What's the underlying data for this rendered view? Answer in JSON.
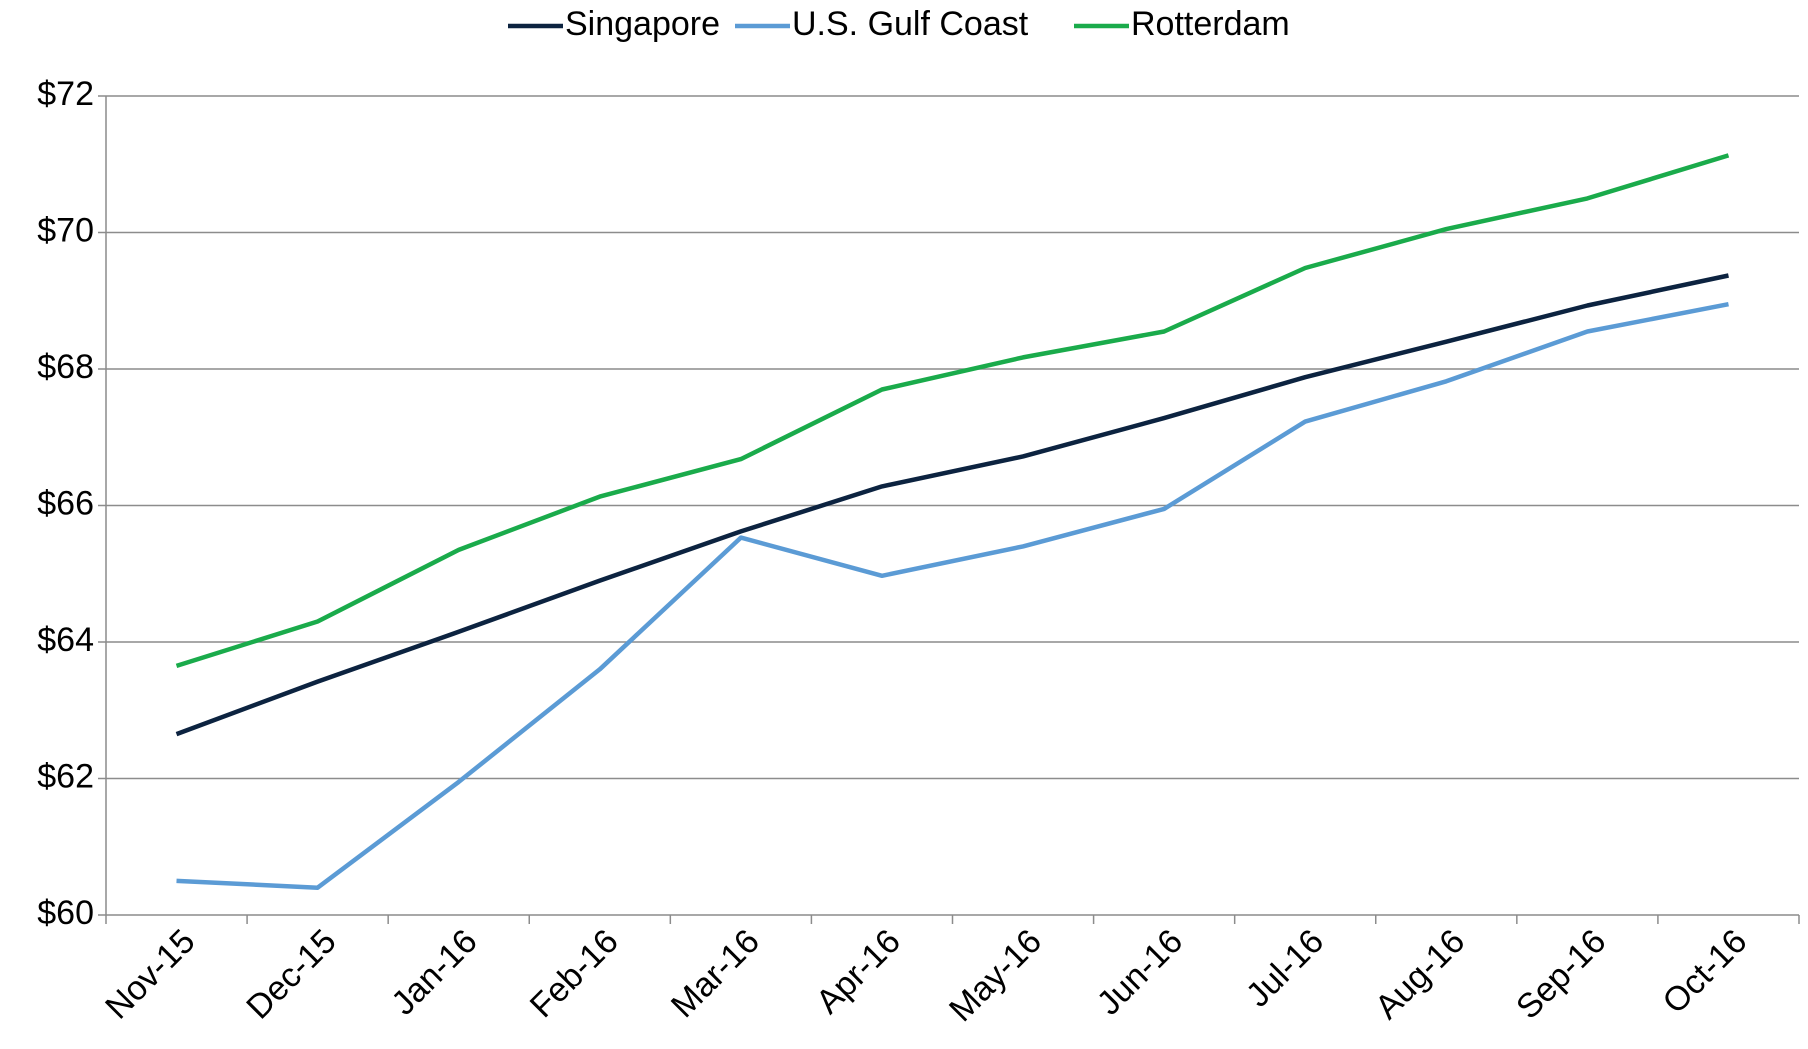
{
  "chart_data": {
    "type": "line",
    "categories": [
      "Nov-15",
      "Dec-15",
      "Jan-16",
      "Feb-16",
      "Mar-16",
      "Apr-16",
      "May-16",
      "Jun-16",
      "Jul-16",
      "Aug-16",
      "Sep-16",
      "Oct-16"
    ],
    "series": [
      {
        "name": "Singapore",
        "color": "#0c2340",
        "values": [
          62.65,
          63.42,
          64.15,
          64.9,
          65.62,
          66.28,
          66.72,
          67.28,
          67.88,
          68.4,
          68.93,
          69.37
        ]
      },
      {
        "name": "U.S. Gulf Coast",
        "color": "#5b9bd5",
        "values": [
          60.5,
          60.4,
          61.95,
          63.6,
          65.53,
          64.97,
          65.4,
          65.95,
          67.23,
          67.82,
          68.55,
          68.95
        ]
      },
      {
        "name": "Rotterdam",
        "color": "#1aab4b",
        "values": [
          63.65,
          64.3,
          65.35,
          66.13,
          66.68,
          67.7,
          68.17,
          68.55,
          69.48,
          70.05,
          70.5,
          71.13
        ]
      }
    ],
    "ylim": [
      60,
      72
    ],
    "yticks": [
      {
        "value": 60,
        "label": "$60"
      },
      {
        "value": 62,
        "label": "$62"
      },
      {
        "value": 64,
        "label": "$64"
      },
      {
        "value": 66,
        "label": "$66"
      },
      {
        "value": 68,
        "label": "$68"
      },
      {
        "value": 70,
        "label": "$70"
      },
      {
        "value": 72,
        "label": "$72"
      }
    ],
    "grid": true,
    "legend": "top"
  }
}
